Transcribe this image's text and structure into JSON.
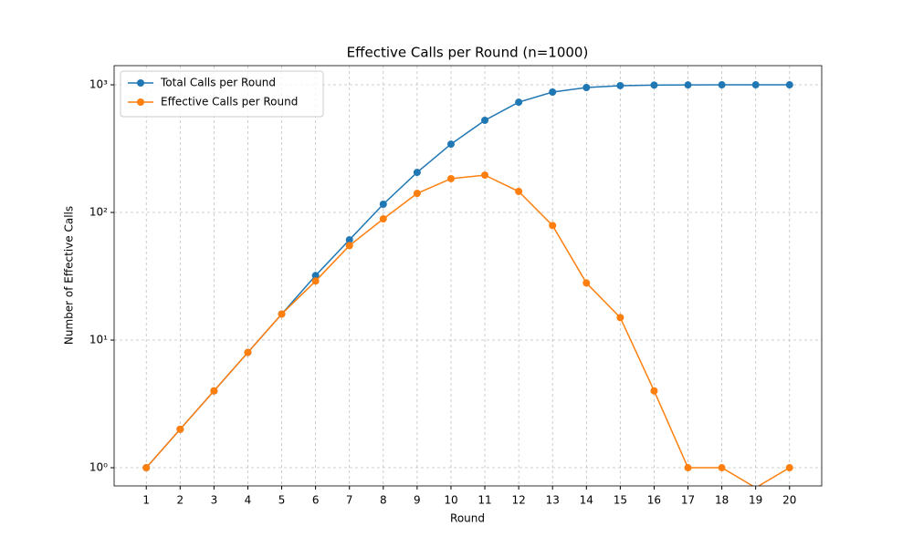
{
  "chart_data": {
    "type": "line",
    "title": "Effective Calls per Round (n=1000)",
    "x_label": "Round",
    "y_label": "Number of Effective Calls",
    "x": [
      1,
      2,
      3,
      4,
      5,
      6,
      7,
      8,
      9,
      10,
      11,
      12,
      13,
      14,
      15,
      16,
      17,
      18,
      19,
      20
    ],
    "series": [
      {
        "name": "Total Calls per Round",
        "color": "#1f77b4",
        "values": [
          1,
          2,
          4,
          8,
          16,
          32,
          61,
          116,
          206,
          343,
          527,
          731,
          877,
          952,
          985,
          995,
          998,
          1000,
          1000,
          1000
        ]
      },
      {
        "name": "Effective Calls per Round",
        "color": "#ff7f0e",
        "values": [
          1,
          2,
          4,
          8,
          16,
          29,
          55,
          89,
          141,
          184,
          196,
          146,
          79,
          28,
          15,
          4,
          1,
          1,
          0,
          1
        ]
      }
    ],
    "xlim": [
      0.05,
      20.95
    ],
    "xticks": [
      1,
      2,
      3,
      4,
      5,
      6,
      7,
      8,
      9,
      10,
      11,
      12,
      13,
      14,
      15,
      16,
      17,
      18,
      19,
      20
    ],
    "ylim": [
      0.72,
      1413
    ],
    "yticks": [
      {
        "value": 1,
        "label": "10⁰"
      },
      {
        "value": 10,
        "label": "10¹"
      },
      {
        "value": 100,
        "label": "10²"
      },
      {
        "value": 1000,
        "label": "10³"
      }
    ],
    "log_y": true,
    "grid": true,
    "legend": "upper left"
  }
}
